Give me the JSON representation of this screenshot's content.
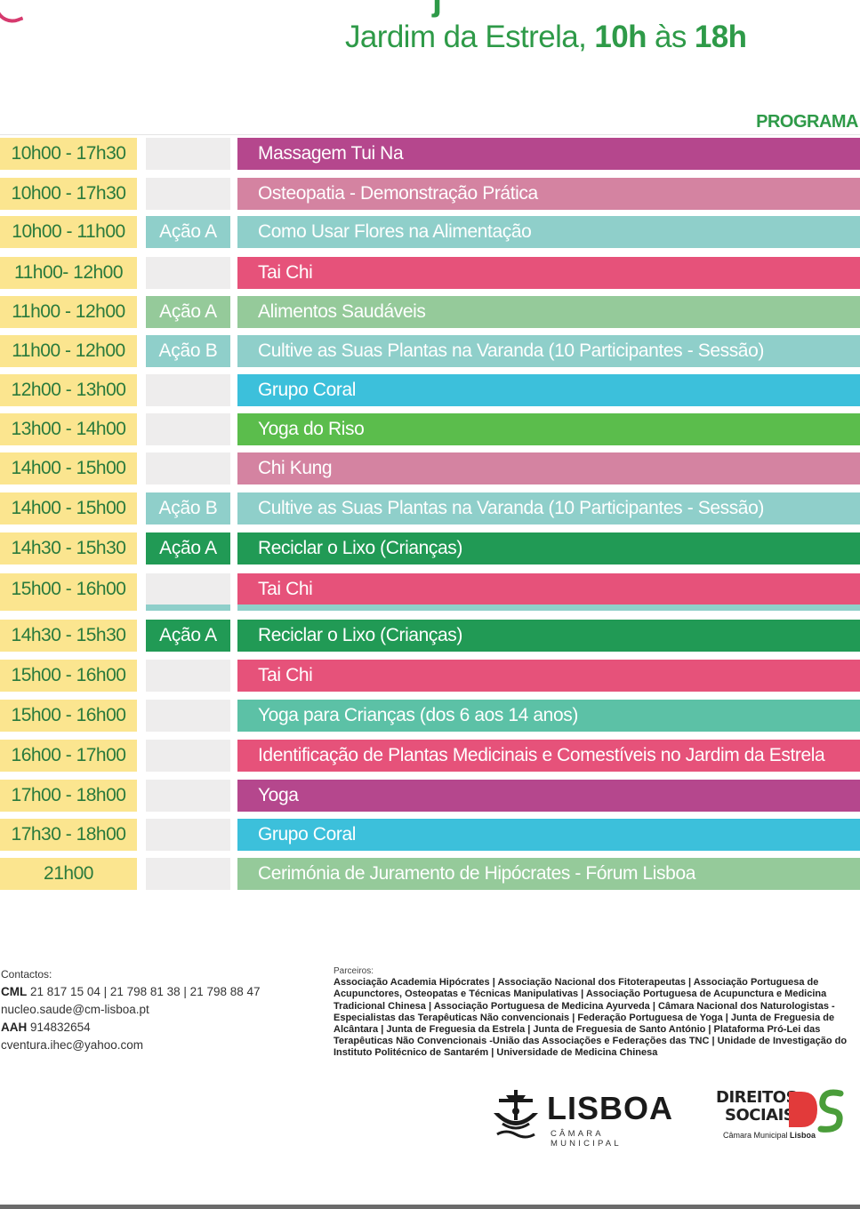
{
  "header": {
    "location": "Jardim da Estrela,",
    "start": "10h",
    "connector": "às",
    "end": "18h",
    "descender": "j",
    "section_label": "PROGRAMA"
  },
  "schedule": [
    {
      "time": "10h00 - 17h30",
      "action": "",
      "activity": "Massagem Tui Na",
      "activity_color": "#b5478d",
      "action_color": "#eeeded"
    },
    {
      "time": "10h00 - 17h30",
      "action": "",
      "activity": "Osteopatia - Demonstração Prática",
      "activity_color": "#d483a1",
      "action_color": "#eeeded"
    },
    {
      "time": "10h00 - 11h00",
      "action": "Ação A",
      "activity": "Como Usar Flores na Alimentação",
      "activity_color": "#8fcfca",
      "action_color": "#8fcfca"
    },
    {
      "time": "11h00- 12h00",
      "action": "",
      "activity": "Tai Chi",
      "activity_color": "#e6527a",
      "action_color": "#eeeded"
    },
    {
      "time": "11h00 - 12h00",
      "action": "Ação A",
      "activity": "Alimentos Saudáveis",
      "activity_color": "#95ca9a",
      "action_color": "#95ca9a"
    },
    {
      "time": "11h00 - 12h00",
      "action": "Ação B",
      "activity": "Cultive as Suas Plantas na Varanda (10 Participantes - Sessão)",
      "activity_color": "#8fcfca",
      "action_color": "#8fcfca"
    },
    {
      "time": "12h00 - 13h00",
      "action": "",
      "activity": "Grupo Coral",
      "activity_color": "#3cc0db",
      "action_color": "#eeeded"
    },
    {
      "time": "13h00 - 14h00",
      "action": "",
      "activity": "Yoga do Riso",
      "activity_color": "#5bbd4c",
      "action_color": "#eeeded"
    },
    {
      "time": "14h00 - 15h00",
      "action": "",
      "activity": "Chi Kung",
      "activity_color": "#d483a1",
      "action_color": "#eeeded"
    },
    {
      "time": "14h00 - 15h00",
      "action": "Ação B",
      "activity": "Cultive as Suas Plantas na Varanda (10 Participantes - Sessão)",
      "activity_color": "#8fcfca",
      "action_color": "#8fcfca"
    },
    {
      "time": "14h30 - 15h30",
      "action": "Ação A",
      "activity": "Reciclar o Lixo (Crianças)",
      "activity_color": "#219a55",
      "action_color": "#219a55"
    },
    {
      "time": "15h00 - 16h00",
      "action": "",
      "activity": "Tai Chi",
      "activity_color": "#e6527a",
      "action_color": "#eeeded"
    },
    {
      "time": "14h30 - 15h30",
      "action": "Ação A",
      "activity": "Reciclar o Lixo (Crianças)",
      "activity_color": "#219a55",
      "action_color": "#219a55"
    },
    {
      "time": "15h00 - 16h00",
      "action": "",
      "activity": "Tai Chi",
      "activity_color": "#e6527a",
      "action_color": "#eeeded"
    },
    {
      "time": "15h00 - 16h00",
      "action": "",
      "activity": "Yoga para Crianças (dos 6 aos 14 anos)",
      "activity_color": "#5cc1a6",
      "action_color": "#eeeded"
    },
    {
      "time": "16h00 - 17h00",
      "action": "",
      "activity": "Identificação de Plantas Medicinais e Comestíveis no Jardim da Estrela",
      "activity_color": "#e6527a",
      "action_color": "#eeeded"
    },
    {
      "time": "17h00 - 18h00",
      "action": "",
      "activity": "Yoga",
      "activity_color": "#b5478d",
      "action_color": "#eeeded"
    },
    {
      "time": "17h30 - 18h00",
      "action": "",
      "activity": "Grupo Coral",
      "activity_color": "#3cc0db",
      "action_color": "#eeeded"
    },
    {
      "time": "21h00",
      "action": "",
      "activity": "Cerimónia de Juramento de Hipócrates - Fórum Lisboa",
      "activity_color": "#95ca9a",
      "action_color": "#eeeded"
    }
  ],
  "contacts": {
    "label": "Contactos:",
    "cml_label": "CML",
    "cml_phones": "21 817 15 04 |  21 798 81 38 | 21 798 88 47",
    "cml_email": "nucleo.saude@cm-lisboa.pt",
    "aah_label": "AAH",
    "aah_phone": "914832654",
    "aah_email": "cventura.ihec@yahoo.com"
  },
  "partners": {
    "label": "Parceiros:",
    "text": "Associação Academia Hipócrates | Associação Nacional dos Fitoterapeutas | Associação Portuguesa de Acupunctores, Osteopatas e Técnicas Manipulativas | Associação Portuguesa de Acupunctura e Medicina Tradicional Chinesa | Associação Portuguesa de Medicina Ayurveda | Câmara Nacional dos Naturologistas - Especialistas das Terapêuticas Não convencionais | Federação Portuguesa de Yoga | Junta de Freguesia de Alcântara | Junta de Freguesia da Estrela | Junta de Freguesia de Santo António | Plataforma Pró-Lei das Terapêuticas Não Convencionais -União das Associações e Federações das TNC | Unidade de Investigação do Instituto Politécnico de Santarém | Universidade de Medicina Chinesa"
  },
  "logos": {
    "lisboa_name": "LISBOA",
    "lisboa_sub": "CÂMARA MUNICIPAL",
    "ds_line1": "DIREITOS",
    "ds_line2": "SOCIAIS",
    "ds_sub_prefix": "Câmara Municipal",
    "ds_sub_city": "Lisboa",
    "lisboa_icon": "ship-crest-icon",
    "ds_icon": "ds-monogram-icon"
  }
}
